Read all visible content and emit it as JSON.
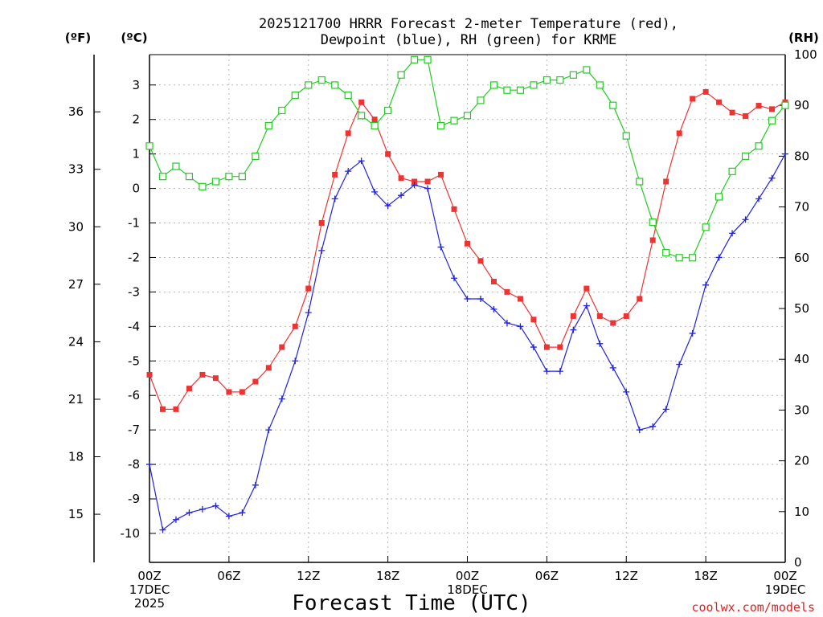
{
  "chart_data": {
    "type": "line",
    "title_line1": "2025121700 HRRR Forecast 2-meter Temperature (red),",
    "title_line2": "Dewpoint (blue), RH (green) for KRME",
    "unit_left_f": "(ºF)",
    "unit_left_c": "(ºC)",
    "unit_right": "(RH)",
    "xlabel": "Forecast Time (UTC)",
    "credit": "coolwx.com/models",
    "x_range": [
      0,
      48
    ],
    "x_ticks": [
      {
        "h": 0,
        "lines": [
          "00Z",
          "17DEC",
          "2025"
        ]
      },
      {
        "h": 6,
        "lines": [
          "06Z"
        ]
      },
      {
        "h": 12,
        "lines": [
          "12Z"
        ]
      },
      {
        "h": 18,
        "lines": [
          "18Z"
        ]
      },
      {
        "h": 24,
        "lines": [
          "00Z",
          "18DEC"
        ]
      },
      {
        "h": 30,
        "lines": [
          "06Z"
        ]
      },
      {
        "h": 36,
        "lines": [
          "12Z"
        ]
      },
      {
        "h": 42,
        "lines": [
          "18Z"
        ]
      },
      {
        "h": 48,
        "lines": [
          "00Z",
          "19DEC"
        ]
      }
    ],
    "y_left_c_range": [
      -10.84,
      3.88
    ],
    "y_left_c_ticks": [
      -10,
      -9,
      -8,
      -7,
      -6,
      -5,
      -4,
      -3,
      -2,
      -1,
      0,
      1,
      2,
      3
    ],
    "y_left_f_ticks": [
      15,
      18,
      21,
      24,
      27,
      30,
      33,
      36
    ],
    "y_right_range": [
      0,
      100
    ],
    "y_right_ticks": [
      0,
      10,
      20,
      30,
      40,
      50,
      60,
      70,
      80,
      90,
      100
    ],
    "grid": true,
    "series": [
      {
        "name": "Temperature",
        "color": "#ee3333",
        "marker": "filled-square",
        "axis": "celsius",
        "values": [
          -5.4,
          -6.4,
          -6.4,
          -5.8,
          -5.4,
          -5.5,
          -5.9,
          -5.9,
          -5.6,
          -5.2,
          -4.6,
          -4.0,
          -2.9,
          -1.0,
          0.4,
          1.6,
          2.5,
          2.0,
          1.0,
          0.3,
          0.2,
          0.2,
          0.4,
          -0.6,
          -1.6,
          -2.1,
          -2.7,
          -3.0,
          -3.2,
          -3.8,
          -4.6,
          -4.6,
          -3.7,
          -2.9,
          -3.7,
          -3.9,
          -3.7,
          -3.2,
          -1.5,
          0.2,
          1.6,
          2.6,
          2.8,
          2.5,
          2.2,
          2.1,
          2.4,
          2.3,
          2.5
        ]
      },
      {
        "name": "Dewpoint",
        "color": "#2222dd",
        "marker": "plus",
        "axis": "celsius",
        "values": [
          -8.0,
          -9.9,
          -9.6,
          -9.4,
          -9.3,
          -9.2,
          -9.5,
          -9.4,
          -8.6,
          -7.0,
          -6.1,
          -5.0,
          -3.6,
          -1.8,
          -0.3,
          0.5,
          0.8,
          -0.1,
          -0.5,
          -0.2,
          0.1,
          0.0,
          -1.7,
          -2.6,
          -3.2,
          -3.2,
          -3.5,
          -3.9,
          -4.0,
          -4.6,
          -5.3,
          -5.3,
          -4.1,
          -3.4,
          -4.5,
          -5.2,
          -5.9,
          -7.0,
          -6.9,
          -6.4,
          -5.1,
          -4.2,
          -2.8,
          -2.0,
          -1.3,
          -0.9,
          -0.3,
          0.3,
          1.0
        ]
      },
      {
        "name": "RH",
        "color": "#22cc22",
        "marker": "open-square",
        "axis": "rh",
        "values": [
          82,
          76,
          78,
          76,
          74,
          75,
          76,
          76,
          80,
          86,
          89,
          92,
          94,
          95,
          94,
          92,
          88,
          86,
          89,
          96,
          99,
          99,
          86,
          87,
          88,
          91,
          94,
          93,
          93,
          94,
          95,
          95,
          96,
          97,
          94,
          90,
          84,
          75,
          67,
          61,
          60,
          60,
          66,
          72,
          77,
          80,
          82,
          87,
          90
        ]
      }
    ]
  }
}
